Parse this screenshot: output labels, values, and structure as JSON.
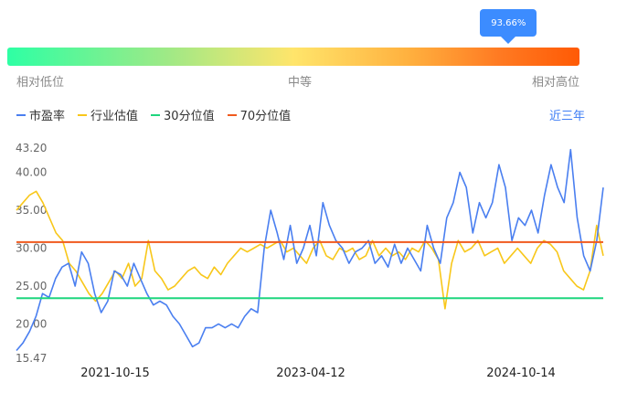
{
  "gauge": {
    "percentile_label": "93.66%",
    "percentile_value": 0.9366,
    "low_label": "相对低位",
    "mid_label": "中等",
    "high_label": "相对高位"
  },
  "period_label": "近三年",
  "colors": {
    "pe": "#4a7ff0",
    "industry": "#f8c71a",
    "p30": "#1ed67e",
    "p70": "#f05a1e"
  },
  "chart_data": {
    "type": "line",
    "y_ticks": [
      "43.20",
      "40.00",
      "35.00",
      "30.00",
      "25.00",
      "20.00",
      "15.47"
    ],
    "ylim": [
      15.47,
      43.2
    ],
    "x_ticks": [
      "2021-10-15",
      "2023-04-12",
      "2024-10-14"
    ],
    "legend": [
      "市盈率",
      "行业估值",
      "30分位值",
      "70分位值"
    ],
    "reference_lines": [
      {
        "name": "30分位值",
        "value": 23.4
      },
      {
        "name": "70分位值",
        "value": 30.8
      }
    ],
    "series": [
      {
        "name": "市盈率",
        "values": [
          16.5,
          17.5,
          19,
          21,
          24,
          23.5,
          26,
          27.5,
          28,
          25,
          29.5,
          28,
          24,
          21.5,
          23,
          27,
          26.5,
          25,
          28,
          26,
          24,
          22.5,
          23,
          22.5,
          21,
          20,
          18.5,
          17,
          17.5,
          19.5,
          19.5,
          20,
          19.5,
          20,
          19.5,
          21,
          22,
          21.5,
          30,
          35,
          32,
          28.5,
          33,
          28,
          30,
          33,
          29,
          36,
          33,
          31,
          30,
          28,
          29.5,
          30,
          31,
          28,
          29,
          27.5,
          30.5,
          28,
          30,
          28.5,
          27,
          33,
          30,
          28,
          34,
          36,
          40,
          38,
          32,
          36,
          34,
          36,
          41,
          38,
          31,
          34,
          33,
          35,
          32,
          37,
          41,
          38,
          36,
          43,
          34,
          29,
          27,
          31,
          38
        ]
      },
      {
        "name": "行业估值",
        "values": [
          35,
          36,
          37,
          37.5,
          36,
          34,
          32,
          31,
          28,
          27,
          25.5,
          24,
          23,
          24,
          25.5,
          27,
          26,
          28,
          25,
          26,
          31,
          27,
          26,
          24.5,
          25,
          26,
          27,
          27.5,
          26.5,
          26,
          27.5,
          26.5,
          28,
          29,
          30,
          29.5,
          30,
          30.5,
          30,
          30.5,
          31,
          29.5,
          30,
          29,
          28,
          30,
          31,
          29,
          28.5,
          30,
          29.5,
          30,
          28.5,
          29,
          31,
          29,
          30,
          29,
          29.5,
          28.5,
          30,
          29.5,
          31,
          30,
          28.5,
          22,
          28,
          31,
          29.5,
          30,
          31,
          29,
          29.5,
          30,
          28,
          29,
          30,
          29,
          28,
          30,
          31,
          30.5,
          29.5,
          27,
          26,
          25,
          24.5,
          27,
          33,
          29
        ]
      }
    ]
  }
}
